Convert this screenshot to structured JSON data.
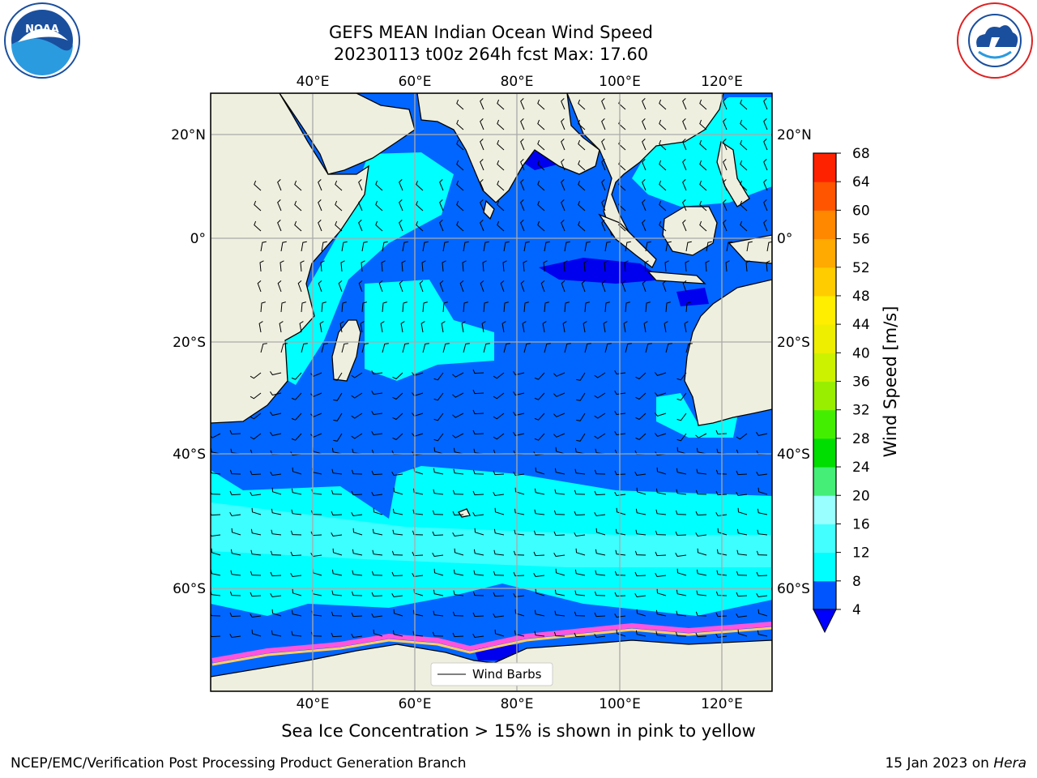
{
  "header": {
    "title_line1": "GEFS MEAN Indian Ocean Wind Speed",
    "title_line2": "20230113 t00z 264h fcst   Max: 17.60"
  },
  "map": {
    "lon_range": [
      20,
      130
    ],
    "lat_range": [
      -74,
      28
    ],
    "lon_ticks": [
      40,
      60,
      80,
      100,
      120
    ],
    "lon_tick_labels": [
      "40°E",
      "60°E",
      "80°E",
      "100°E",
      "120°E"
    ],
    "lat_ticks": [
      20,
      0,
      -20,
      -40,
      -60
    ],
    "lat_tick_labels": [
      "20°N",
      "0°",
      "20°S",
      "40°S",
      "60°S"
    ],
    "grid": true,
    "land_color": "#efefdf",
    "legend": {
      "label": "Wind Barbs",
      "placement": "bottom-center"
    }
  },
  "colorbar": {
    "label": "Wind Speed [m/s]",
    "ticks": [
      "4",
      "8",
      "12",
      "16",
      "20",
      "24",
      "28",
      "32",
      "36",
      "40",
      "44",
      "48",
      "52",
      "56",
      "60",
      "64",
      "68"
    ],
    "colors": [
      "#0055ff",
      "#00ffff",
      "#44ffff",
      "#99ffff",
      "#44ee77",
      "#00dd00",
      "#44ee00",
      "#99ee00",
      "#ccf200",
      "#eeee00",
      "#ffee00",
      "#ffcc00",
      "#ffaa00",
      "#ff8800",
      "#ff5500",
      "#ff2200",
      "#ff0000"
    ],
    "under_color": "#0000ff"
  },
  "caption": "Sea Ice Concentration > 15% is shown in pink to yellow",
  "footer": {
    "credit": "NCEP/EMC/Verification Post Processing Product Generation Branch",
    "date": "15 Jan 2023 on",
    "machine": "Hera"
  },
  "logos": {
    "left": "noara-logo",
    "right": "nws-logo"
  }
}
